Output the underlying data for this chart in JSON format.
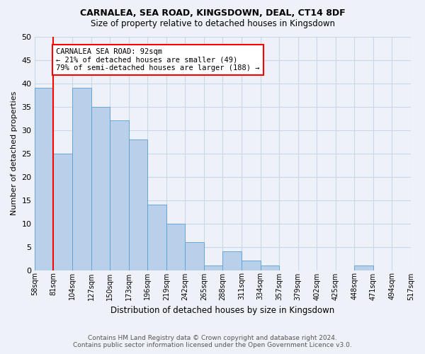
{
  "title1": "CARNALEA, SEA ROAD, KINGSDOWN, DEAL, CT14 8DF",
  "title2": "Size of property relative to detached houses in Kingsdown",
  "xlabel": "Distribution of detached houses by size in Kingsdown",
  "ylabel": "Number of detached properties",
  "bar_values": [
    39,
    25,
    39,
    35,
    32,
    28,
    14,
    10,
    6,
    1,
    4,
    2,
    1,
    0,
    0,
    0,
    0,
    1,
    0,
    0
  ],
  "bin_labels": [
    "58sqm",
    "81sqm",
    "104sqm",
    "127sqm",
    "150sqm",
    "173sqm",
    "196sqm",
    "219sqm",
    "242sqm",
    "265sqm",
    "288sqm",
    "311sqm",
    "334sqm",
    "357sqm",
    "379sqm",
    "402sqm",
    "425sqm",
    "448sqm",
    "471sqm",
    "494sqm",
    "517sqm"
  ],
  "bar_color": "#b8d0ea",
  "bar_edge_color": "#5a9fd4",
  "grid_color": "#c8d8ec",
  "vline_color": "red",
  "annotation_text": "CARNALEA SEA ROAD: 92sqm\n← 21% of detached houses are smaller (49)\n79% of semi-detached houses are larger (188) →",
  "annotation_box_color": "white",
  "annotation_box_edge": "red",
  "ylim": [
    0,
    50
  ],
  "yticks": [
    0,
    5,
    10,
    15,
    20,
    25,
    30,
    35,
    40,
    45,
    50
  ],
  "footnote": "Contains HM Land Registry data © Crown copyright and database right 2024.\nContains public sector information licensed under the Open Government Licence v3.0.",
  "bg_color": "#eef2f8"
}
